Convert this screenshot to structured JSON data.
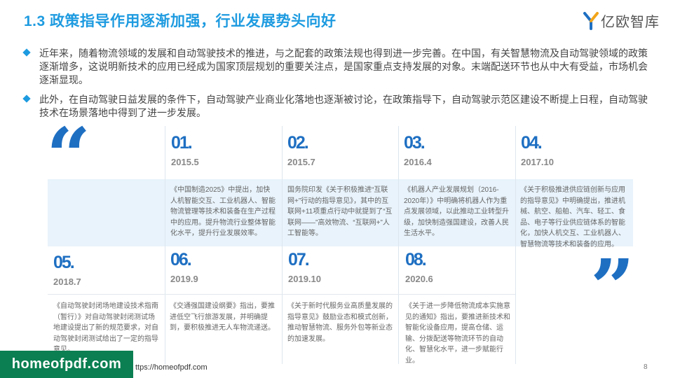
{
  "title": "1.3 政策指导作用逐渐加强，行业发展势头向好",
  "logo": {
    "text": "亿欧智库",
    "icon": "logo-y-icon"
  },
  "bullets": [
    "近年来，随着物流领域的发展和自动驾驶技术的推进，与之配套的政策法规也得到进一步完善。在中国，有关智慧物流及自动驾驶领域的政策逐渐增多，这说明新技术的应用已经成为国家顶层规划的重要关注点，是国家重点支持发展的对象。末端配送环节也从中大有受益，市场机会逐渐显现。",
    "此外，在自动驾驶日益发展的条件下，自动驾驶产业商业化落地也逐渐被讨论，在政策指导下，自动驾驶示范区建设不断提上日程，自动驾驶技术在场景落地中得到了进一步发展。"
  ],
  "quotes": {
    "open": "“",
    "close": "”"
  },
  "timeline": [
    {
      "num": "01.",
      "date": "2015.5",
      "text": "《中国制造2025》中提出，加快人机智能交互、工业机器人、智能物流管理等技术和装备在生产过程中的应用。提升物流行业整体智能化水平，提升行业发展效率。"
    },
    {
      "num": "02.",
      "date": "2015.7",
      "text": "国务院印发《关于积极推进“互联网+”行动的指导意见》，其中的互联网+11项重点行动中就提到了“互联网——”高效物流、“互联网+”人工智能等。"
    },
    {
      "num": "03.",
      "date": "2016.4",
      "text": "《机器人产业发展规划（2016-2020年）》中明确将机器人作为重点发展领域，以此推动工业转型升级，加快制造强国建设，改善人民生活水平。"
    },
    {
      "num": "04.",
      "date": "2017.10",
      "text": "《关于积极推进供应链创新与应用的指导意见》中明确提出，推进机械、航空、船舶、汽车、轻工、食品、电子等行业供应链体系的智能化，加快人机交互、工业机器人、智慧物流等技术和装备的应用。"
    },
    {
      "num": "05.",
      "date": "2018.7",
      "text": "《自动驾驶封闭场地建设技术指南（暂行）》对自动驾驶封闭测试场地建设提出了新的规范要求，对自动驾驶封闭测试给出了一定的指导意见。"
    },
    {
      "num": "06.",
      "date": "2019.9",
      "text": "《交通强国建设纲要》指出，要推进低空飞行旅游发展，并明确提到，要积极推进无人车物流递送。"
    },
    {
      "num": "07.",
      "date": "2019.10",
      "text": "《关于新时代服务业高质量发展的指导意见》鼓励业态和模式创新，推动智慧物流、服务外包等新业态的加速发展。"
    },
    {
      "num": "08.",
      "date": "2020.6",
      "text": "《关于进一步降低物流成本实施意见的通知》指出，要推进新技术和智能化设备应用，提高仓储、运输、分拨配送等物流环节的自动化、智慧化水平，进一步赋能行业。"
    }
  ],
  "footer": {
    "watermark": "homeofpdf.com",
    "url": "ttps://homeofpdf.com",
    "page": "8"
  },
  "colors": {
    "accent": "#1e9be0",
    "dark_blue": "#1e6fc2",
    "band": "#e8f3fb"
  }
}
